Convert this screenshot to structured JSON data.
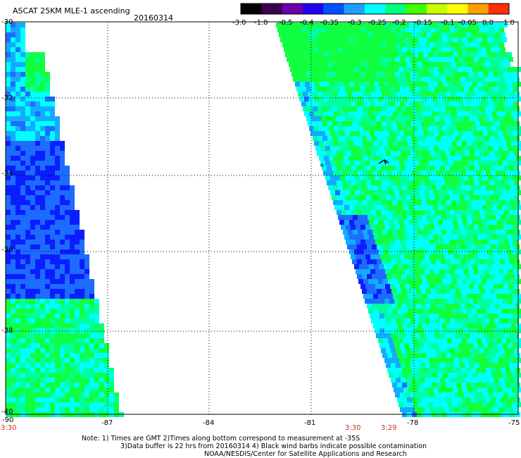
{
  "header": {
    "title": "ASCAT 25KM MLE-1 ascending",
    "date": "20160314"
  },
  "colorbar": {
    "labels": [
      "-3.0",
      "-1.0",
      "-0.5",
      "-0.4",
      "-0.35",
      "-0.3",
      "-0.25",
      "-0.2",
      "-0.15",
      "-0.1",
      "-0.05",
      "0.0",
      "1.0"
    ],
    "colors": [
      "#000000",
      "#3a0050",
      "#6a00a8",
      "#2000f0",
      "#0050ff",
      "#1ea0ff",
      "#00ffff",
      "#00ff80",
      "#40ff00",
      "#c8ff00",
      "#ffff00",
      "#ffa000",
      "#ff3000"
    ]
  },
  "axes": {
    "lon_labels": [
      "-90",
      "-87",
      "-84",
      "-81",
      "-78",
      "-75"
    ],
    "lat_labels": [
      "-30",
      "-32",
      "-34",
      "-36",
      "-38",
      "-40"
    ]
  },
  "time_labels": {
    "left": "3:30",
    "mid_a": "3:30",
    "mid_b": "3:29"
  },
  "notes": {
    "line1": "Note: 1) Times are GMT 2)Times along bottom correspond to measurement at -35S",
    "line2": "3)Data buffer is 22 hrs from 20160314 4) Black wind barbs indicate possible contamination",
    "line3": "NOAA/NESDIS/Center for Satellite Applications and Research"
  },
  "legend_colors": {
    "deep_blue": "#0000ff",
    "blue": "#1e78ff",
    "cyan": "#00ffff",
    "green": "#00ff60",
    "time_red": "#c8321e"
  }
}
